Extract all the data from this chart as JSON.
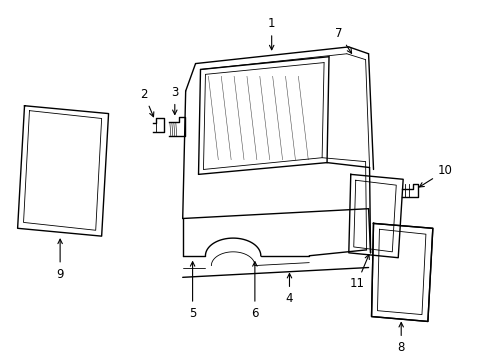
{
  "background_color": "#ffffff",
  "line_color": "#000000",
  "fig_width": 4.89,
  "fig_height": 3.6,
  "dpi": 100,
  "label_fontsize": 8.5
}
